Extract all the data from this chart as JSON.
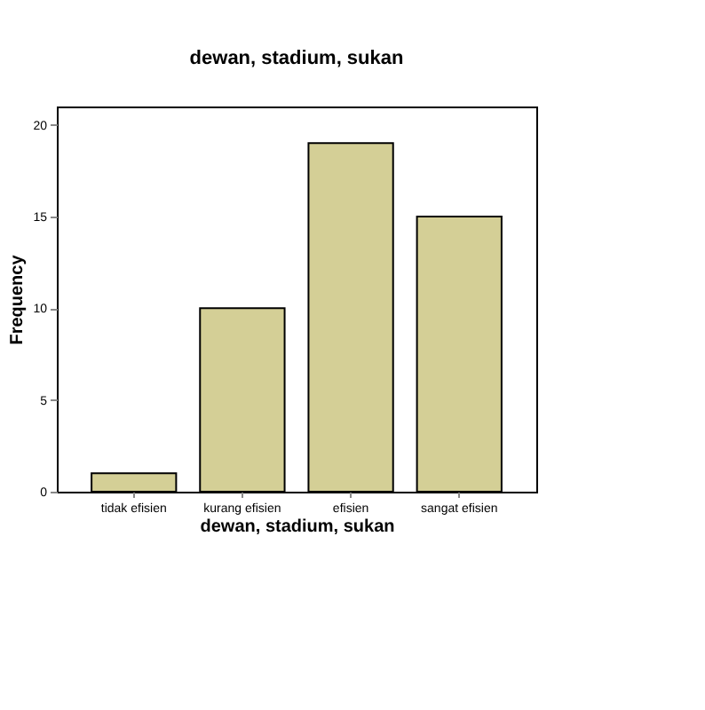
{
  "chart_data": {
    "type": "bar",
    "title": "dewan, stadium, sukan",
    "xlabel": "dewan, stadium, sukan",
    "ylabel": "Frequency",
    "categories": [
      "tidak efisien",
      "kurang efisien",
      "efisien",
      "sangat efisien"
    ],
    "values": [
      1,
      10,
      19,
      15
    ],
    "color": "#d4cf96",
    "ylim": [
      0,
      21
    ],
    "yticks": [
      0,
      5,
      10,
      15,
      20
    ],
    "grid": false
  }
}
